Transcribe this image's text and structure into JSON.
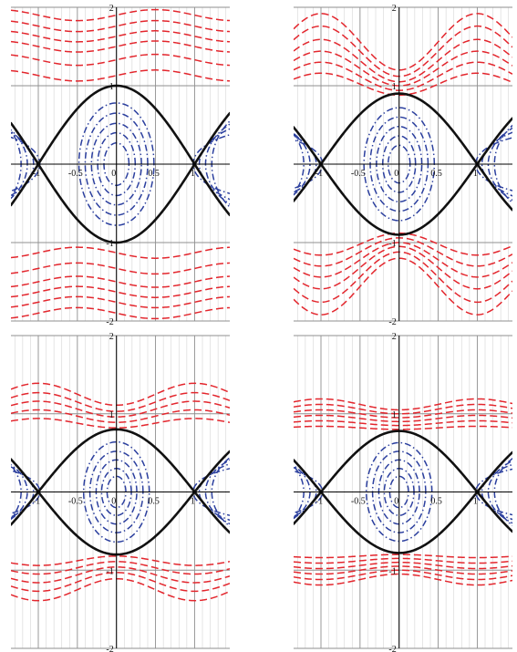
{
  "colors": {
    "separatrix": "#111111",
    "librational": "#2b3f9e",
    "rotational": "#e3262d"
  },
  "chart_data": [
    {
      "type": "line",
      "panel": "top-left",
      "xlim": [
        -1.35,
        1.45
      ],
      "ylim": [
        -2,
        2
      ],
      "x_ticks": [
        -1,
        -0.5,
        0,
        0.5,
        1
      ],
      "x_tick_labels": [
        "-1",
        "-0.5",
        "0",
        "0.5",
        "1"
      ],
      "y_ticks": [
        -2,
        -1,
        1,
        2
      ],
      "y_tick_labels": [
        "-2",
        "-1",
        "1",
        "2"
      ],
      "grid": true,
      "separatrix": {
        "amplitude": 1.0,
        "zeros_at_x": [
          -1,
          1
        ]
      },
      "librational_curves": [
        {
          "a": 0.48,
          "b": 0.78
        },
        {
          "a": 0.4,
          "b": 0.65
        },
        {
          "a": 0.32,
          "b": 0.52
        },
        {
          "a": 0.24,
          "b": 0.4
        },
        {
          "a": 0.16,
          "b": 0.27
        }
      ],
      "librational_side_fans": {
        "offsets": [
          0.06,
          0.14,
          0.22,
          0.3
        ],
        "xmax": 0.5
      },
      "rotational_curves": [
        {
          "y0": 1.13,
          "wave": 0.07
        },
        {
          "y0": 1.33,
          "wave": 0.07
        },
        {
          "y0": 1.5,
          "wave": 0.07
        },
        {
          "y0": 1.63,
          "wave": 0.07
        },
        {
          "y0": 1.76,
          "wave": 0.07
        },
        {
          "y0": 1.9,
          "wave": 0.07
        }
      ]
    },
    {
      "type": "line",
      "panel": "top-right",
      "xlim": [
        -1.35,
        1.45
      ],
      "ylim": [
        -2,
        2
      ],
      "x_ticks": [
        -1,
        -0.5,
        0,
        0.5,
        1
      ],
      "x_tick_labels": [
        "-1",
        "-0.5",
        "0",
        "0.5",
        "1"
      ],
      "y_ticks": [
        -2,
        -1,
        1,
        2
      ],
      "y_tick_labels": [
        "-2",
        "-1",
        "1",
        "2"
      ],
      "grid": true,
      "separatrix": {
        "amplitude": 0.9,
        "zeros_at_x": [
          -1,
          1
        ]
      },
      "librational_curves": [
        {
          "a": 0.45,
          "b": 0.72
        },
        {
          "a": 0.37,
          "b": 0.6
        },
        {
          "a": 0.29,
          "b": 0.48
        },
        {
          "a": 0.21,
          "b": 0.36
        },
        {
          "a": 0.14,
          "b": 0.24
        }
      ],
      "librational_side_fans": {
        "offsets": [
          0.06,
          0.14,
          0.22,
          0.3
        ],
        "xmax": 0.5
      },
      "rotational_curves": [
        {
          "c": 1.02,
          "d": 0.14
        },
        {
          "c": 1.12,
          "d": 0.18
        },
        {
          "c": 1.22,
          "d": 0.22
        },
        {
          "c": 1.32,
          "d": 0.27
        },
        {
          "c": 1.44,
          "d": 0.32
        },
        {
          "c": 1.56,
          "d": 0.36
        }
      ]
    },
    {
      "type": "line",
      "panel": "bottom-left",
      "xlim": [
        -1.35,
        1.45
      ],
      "ylim": [
        -2,
        2
      ],
      "x_ticks": [
        -1,
        -0.5,
        0,
        0.5,
        1
      ],
      "x_tick_labels": [
        "-1",
        "-0.5",
        "0",
        "0.5",
        "1"
      ],
      "y_ticks": [
        -2,
        -1,
        1,
        2
      ],
      "y_tick_labels": [
        "-2",
        "-1",
        "1",
        "2"
      ],
      "grid": true,
      "separatrix": {
        "amplitude": 0.8,
        "zeros_at_x": [
          -1,
          1
        ]
      },
      "librational_curves": [
        {
          "a": 0.42,
          "b": 0.64
        },
        {
          "a": 0.34,
          "b": 0.52
        },
        {
          "a": 0.26,
          "b": 0.41
        },
        {
          "a": 0.19,
          "b": 0.3
        },
        {
          "a": 0.12,
          "b": 0.2
        }
      ],
      "librational_side_fans": {
        "offsets": [
          0.06,
          0.14,
          0.22,
          0.3
        ],
        "xmax": 0.5
      },
      "rotational_curves": [
        {
          "c": 0.88,
          "d": 0.06
        },
        {
          "c": 0.97,
          "d": 0.08
        },
        {
          "c": 1.06,
          "d": 0.1
        },
        {
          "c": 1.15,
          "d": 0.12
        },
        {
          "c": 1.25,
          "d": 0.14
        }
      ]
    },
    {
      "type": "line",
      "panel": "bottom-right",
      "xlim": [
        -1.35,
        1.45
      ],
      "ylim": [
        -2,
        2
      ],
      "x_ticks": [
        -1,
        -0.5,
        0,
        0.5,
        1
      ],
      "x_tick_labels": [
        "-1",
        "-0.5",
        "0",
        "0.5",
        "1"
      ],
      "y_ticks": [
        -2,
        -1,
        1,
        2
      ],
      "y_tick_labels": [
        "-2",
        "-1",
        "1",
        "2"
      ],
      "grid": true,
      "separatrix": {
        "amplitude": 0.78,
        "zeros_at_x": [
          -1,
          1
        ]
      },
      "librational_curves": [
        {
          "a": 0.42,
          "b": 0.63
        },
        {
          "a": 0.34,
          "b": 0.52
        },
        {
          "a": 0.26,
          "b": 0.41
        },
        {
          "a": 0.19,
          "b": 0.3
        },
        {
          "a": 0.12,
          "b": 0.2
        }
      ],
      "librational_side_fans": {
        "offsets": [
          0.06,
          0.14,
          0.22,
          0.3
        ],
        "xmax": 0.5
      },
      "rotational_curves": [
        {
          "c": 0.82,
          "d": 0.02
        },
        {
          "c": 0.88,
          "d": 0.03
        },
        {
          "c": 0.94,
          "d": 0.04
        },
        {
          "c": 1.0,
          "d": 0.05
        },
        {
          "c": 1.06,
          "d": 0.06
        },
        {
          "c": 1.12,
          "d": 0.07
        }
      ]
    }
  ]
}
